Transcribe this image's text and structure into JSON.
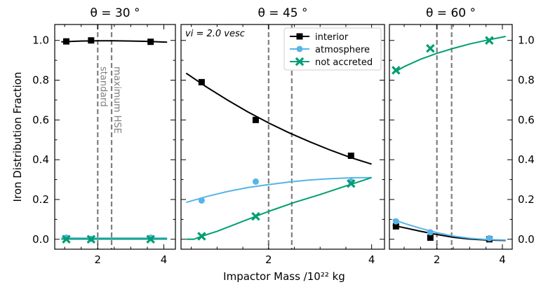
{
  "chart_data": [
    {
      "type": "line",
      "title": "θ = 30 °",
      "xlabel": "",
      "ylabel": "Iron Distribution Fraction",
      "xlim": [
        0.7,
        4.35
      ],
      "ylim": [
        -0.05,
        1.08
      ],
      "xticks": [
        2,
        4
      ],
      "yticks": [
        0.0,
        0.2,
        0.4,
        0.6,
        0.8,
        1.0
      ],
      "vlines": [
        {
          "x": 2.0,
          "label": "standard"
        },
        {
          "x": 2.42,
          "label": "maximum HSE"
        }
      ],
      "series": [
        {
          "name": "interior",
          "color": "#000000",
          "marker": "square",
          "points": {
            "x": [
              1.05,
              1.8,
              3.6
            ],
            "y": [
              0.995,
              1.0,
              0.993
            ]
          },
          "fit": {
            "x": [
              0.9,
              1.5,
              2.0,
              2.5,
              3.0,
              3.5,
              4.1
            ],
            "y": [
              0.993,
              0.997,
              0.998,
              0.998,
              0.997,
              0.995,
              0.991
            ]
          }
        },
        {
          "name": "atmosphere",
          "color": "#56b4e9",
          "marker": "circle",
          "points": {
            "x": [
              1.05,
              1.8,
              3.6
            ],
            "y": [
              0.008,
              0.002,
              0.008
            ]
          },
          "fit": {
            "x": [
              0.9,
              2.5,
              4.1
            ],
            "y": [
              0.006,
              0.006,
              0.006
            ]
          }
        },
        {
          "name": "not accreted",
          "color": "#009e73",
          "marker": "x",
          "points": {
            "x": [
              1.05,
              1.8,
              3.6
            ],
            "y": [
              0.0,
              0.0,
              0.0
            ]
          },
          "fit": {
            "x": [
              0.9,
              2.5,
              4.1
            ],
            "y": [
              0.001,
              0.001,
              0.001
            ]
          }
        }
      ]
    },
    {
      "type": "line",
      "title": "θ = 45 °",
      "xlabel": "Impactor Mass /10²² kg",
      "ylabel": "",
      "annotation": "vi = 2.0 vesc",
      "xlim": [
        0.3,
        4.25
      ],
      "ylim": [
        -0.05,
        1.08
      ],
      "xticks": [
        2,
        4
      ],
      "yticks": [
        0.0,
        0.2,
        0.4,
        0.6,
        0.8,
        1.0
      ],
      "vlines": [
        {
          "x": 2.0,
          "label": ""
        },
        {
          "x": 2.45,
          "label": ""
        }
      ],
      "series": [
        {
          "name": "interior",
          "color": "#000000",
          "marker": "square",
          "points": {
            "x": [
              0.7,
              1.75,
              3.6
            ],
            "y": [
              0.79,
              0.6,
              0.42
            ]
          },
          "fit": {
            "x": [
              0.4,
              0.8,
              1.2,
              1.6,
              2.0,
              2.4,
              2.8,
              3.2,
              3.6,
              4.0
            ],
            "y": [
              0.835,
              0.765,
              0.7,
              0.64,
              0.585,
              0.535,
              0.49,
              0.448,
              0.41,
              0.378
            ]
          }
        },
        {
          "name": "atmosphere",
          "color": "#56b4e9",
          "marker": "circle",
          "points": {
            "x": [
              0.7,
              1.75,
              3.6
            ],
            "y": [
              0.195,
              0.29,
              0.29
            ]
          },
          "fit": {
            "x": [
              0.4,
              0.8,
              1.2,
              1.6,
              2.0,
              2.4,
              2.8,
              3.2,
              3.6,
              4.0
            ],
            "y": [
              0.185,
              0.215,
              0.24,
              0.26,
              0.275,
              0.288,
              0.298,
              0.305,
              0.309,
              0.31
            ]
          }
        },
        {
          "name": "not accreted",
          "color": "#009e73",
          "marker": "x",
          "points": {
            "x": [
              0.7,
              1.75,
              3.6
            ],
            "y": [
              0.015,
              0.115,
              0.28
            ]
          },
          "fit": {
            "x": [
              0.4,
              0.55,
              0.7,
              1.0,
              1.5,
              2.0,
              2.5,
              3.0,
              3.5,
              4.0
            ],
            "y": [
              0.0,
              0.0,
              0.015,
              0.04,
              0.09,
              0.14,
              0.185,
              0.225,
              0.268,
              0.31
            ]
          }
        }
      ],
      "legend": {
        "position": "top-right",
        "entries": [
          "interior",
          "atmosphere",
          "not accreted"
        ]
      }
    },
    {
      "type": "line",
      "title": "θ = 60 °",
      "xlabel": "",
      "ylabel": "",
      "xlim": [
        0.55,
        4.3
      ],
      "ylim": [
        -0.05,
        1.08
      ],
      "xticks": [
        2,
        4
      ],
      "yticks": [
        0.0,
        0.2,
        0.4,
        0.6,
        0.8,
        1.0
      ],
      "vlines": [
        {
          "x": 2.0,
          "label": ""
        },
        {
          "x": 2.45,
          "label": ""
        }
      ],
      "series": [
        {
          "name": "interior",
          "color": "#000000",
          "marker": "square",
          "points": {
            "x": [
              0.75,
              1.8,
              3.6
            ],
            "y": [
              0.065,
              0.008,
              0.0
            ]
          },
          "fit": {
            "x": [
              0.65,
              1.0,
              1.5,
              2.0,
              2.5,
              3.0,
              3.5,
              4.1
            ],
            "y": [
              0.07,
              0.058,
              0.04,
              0.024,
              0.01,
              0.001,
              -0.004,
              -0.006
            ]
          }
        },
        {
          "name": "atmosphere",
          "color": "#56b4e9",
          "marker": "circle",
          "points": {
            "x": [
              0.75,
              1.8,
              3.6
            ],
            "y": [
              0.09,
              0.035,
              0.005
            ]
          },
          "fit": {
            "x": [
              0.65,
              1.0,
              1.5,
              2.0,
              2.5,
              3.0,
              3.5,
              4.1
            ],
            "y": [
              0.1,
              0.08,
              0.055,
              0.033,
              0.016,
              0.005,
              -0.001,
              -0.004
            ]
          }
        },
        {
          "name": "not accreted",
          "color": "#009e73",
          "marker": "x",
          "points": {
            "x": [
              0.75,
              1.8,
              3.6
            ],
            "y": [
              0.85,
              0.96,
              1.0
            ]
          },
          "fit": {
            "x": [
              0.65,
              1.0,
              1.5,
              2.0,
              2.5,
              3.0,
              3.5,
              4.1
            ],
            "y": [
              0.835,
              0.868,
              0.905,
              0.935,
              0.96,
              0.982,
              1.0,
              1.02
            ]
          }
        }
      ]
    }
  ]
}
